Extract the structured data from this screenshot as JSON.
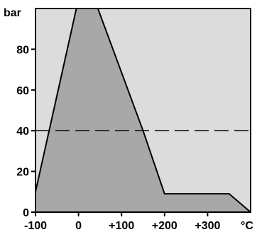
{
  "chart_data": {
    "type": "area",
    "title": "",
    "xlabel": "",
    "ylabel": "",
    "x_unit": "°C",
    "y_unit": "bar",
    "xlim": [
      -100,
      400
    ],
    "ylim": [
      0,
      100
    ],
    "x_ticks": [
      -100,
      0,
      100,
      200,
      300
    ],
    "x_tick_labels": [
      "-100",
      "0",
      "+100",
      "+200",
      "+300"
    ],
    "y_ticks": [
      0,
      20,
      40,
      60,
      80
    ],
    "y_tick_labels": [
      "0",
      "20",
      "40",
      "60",
      "80"
    ],
    "grid": false,
    "legend": "none",
    "series": [
      {
        "x": [
          -100,
          -5,
          45,
          150,
          200,
          350,
          400
        ],
        "y": [
          10,
          100,
          100,
          40,
          9,
          9,
          0
        ]
      }
    ],
    "reference_lines": [
      {
        "axis": "y",
        "value": 40,
        "style": "dashed"
      }
    ],
    "colors": {
      "plot_background": "#dcdcdc",
      "fill": "#a8a8a8",
      "line": "#000000",
      "axis": "#000000"
    }
  }
}
